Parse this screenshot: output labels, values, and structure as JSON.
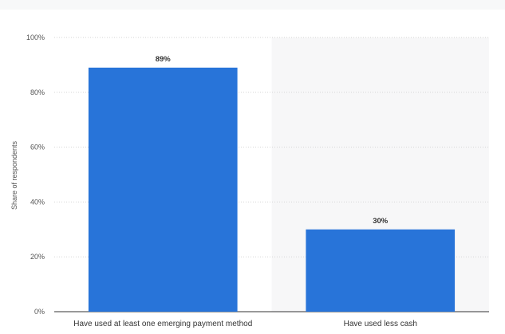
{
  "chart_data": {
    "type": "bar",
    "categories": [
      "Have used at least one emerging payment method",
      "Have used less cash"
    ],
    "values": [
      89,
      30
    ],
    "data_labels": [
      "89%",
      "30%"
    ],
    "ylabel": "Share of respondents",
    "ylim": [
      0,
      100
    ],
    "yticks": [
      0,
      20,
      40,
      60,
      80,
      100
    ],
    "ytick_labels": [
      "0%",
      "20%",
      "40%",
      "60%",
      "80%",
      "100%"
    ],
    "grid": true,
    "bar_color": "#2874d9",
    "highlight_band_color": "#f7f7f8"
  }
}
